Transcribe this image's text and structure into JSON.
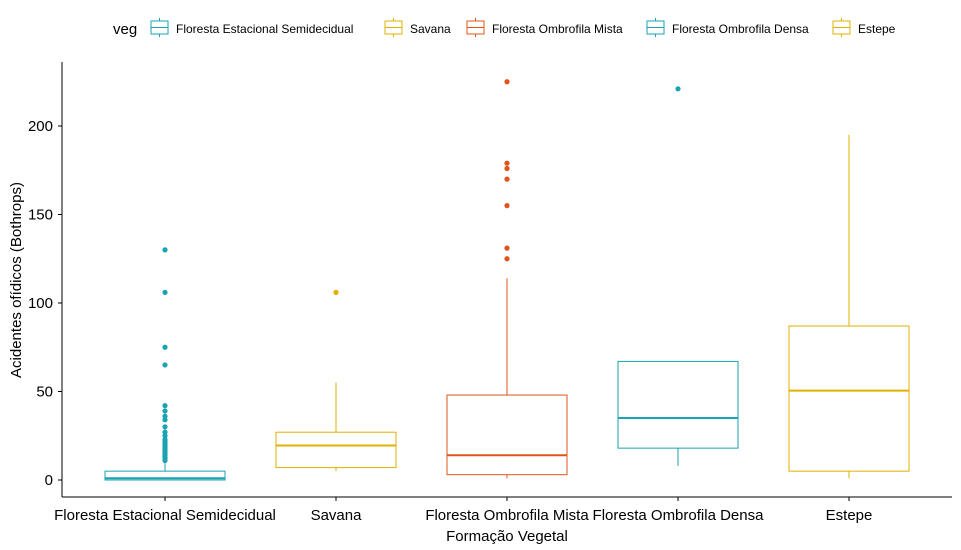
{
  "chart_data": {
    "type": "box",
    "xlabel": "Formação Vegetal",
    "ylabel": "Acidentes ofídicos (Bothrops)",
    "ylim": [
      -10,
      238
    ],
    "yticks": [
      0,
      50,
      100,
      150,
      200
    ],
    "grid": false,
    "legend": {
      "position": "top",
      "title": "veg",
      "entries": [
        {
          "label": "Floresta Estacional Semidecidual",
          "color": "#1AA3B0"
        },
        {
          "label": "Savana",
          "color": "#E0B000"
        },
        {
          "label": "Floresta Ombrofila Mista",
          "color": "#E0541A"
        },
        {
          "label": "Floresta Ombrofila Densa",
          "color": "#1AA3B0"
        },
        {
          "label": "Estepe",
          "color": "#E0B000"
        }
      ]
    },
    "categories": [
      "Floresta Estacional Semidecidual",
      "Savana",
      "Floresta Ombrofila Mista",
      "Floresta Ombrofila Densa",
      "Estepe"
    ],
    "boxes": [
      {
        "category": "Floresta Estacional Semidecidual",
        "color": "#1AA3B0",
        "whisker_low": 0,
        "q1": 0,
        "median": 1,
        "q3": 5,
        "whisker_high": 10,
        "outliers": [
          11,
          12,
          13,
          14,
          15,
          16,
          17,
          18,
          19,
          20,
          21,
          22,
          23,
          25,
          27,
          30,
          34,
          36,
          39,
          42,
          65,
          75,
          106,
          130
        ]
      },
      {
        "category": "Savana",
        "color": "#E0B000",
        "whisker_low": 5,
        "q1": 7,
        "median": 19.5,
        "q3": 27,
        "whisker_high": 55,
        "outliers": [
          106
        ]
      },
      {
        "category": "Floresta Ombrofila Mista",
        "color": "#E0541A",
        "whisker_low": 1,
        "q1": 3,
        "median": 14,
        "q3": 48,
        "whisker_high": 114,
        "outliers": [
          125,
          131,
          155,
          170,
          176,
          179,
          225
        ]
      },
      {
        "category": "Floresta Ombrofila Densa",
        "color": "#1AA3B0",
        "whisker_low": 8,
        "q1": 18,
        "median": 35,
        "q3": 67,
        "whisker_high": 67,
        "outliers": [
          221
        ]
      },
      {
        "category": "Estepe",
        "color": "#E0B000",
        "whisker_low": 1,
        "q1": 5,
        "median": 50.5,
        "q3": 87,
        "whisker_high": 195,
        "outliers": []
      }
    ]
  }
}
